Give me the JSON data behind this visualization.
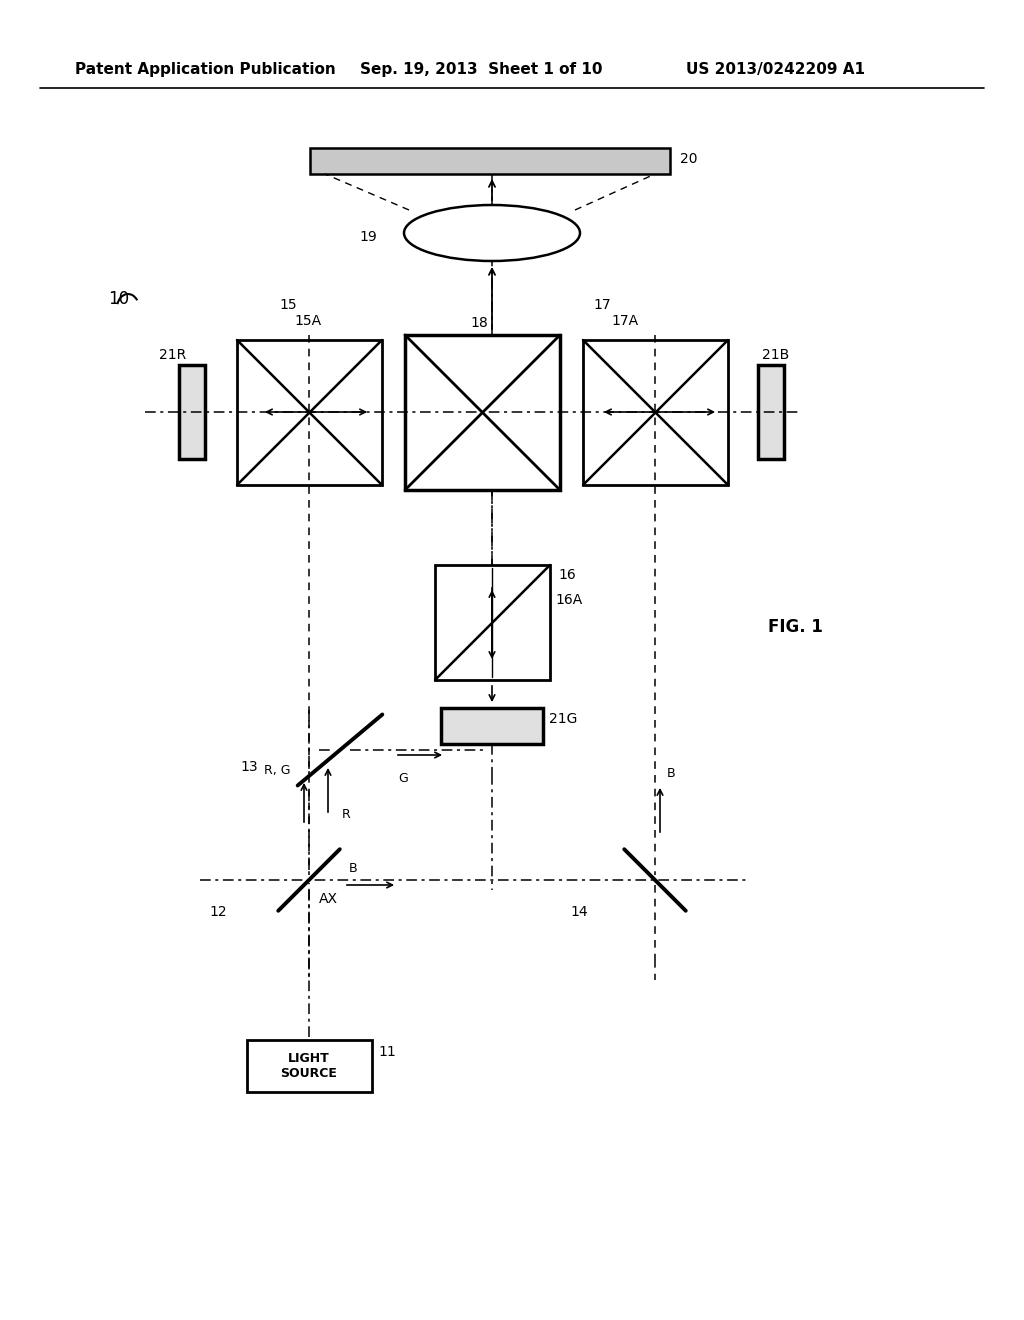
{
  "bg": "#ffffff",
  "header1": "Patent Application Publication",
  "header2": "Sep. 19, 2013  Sheet 1 of 10",
  "header3": "US 2013/0242209 A1",
  "fig_label": "FIG. 1",
  "ls_text": "LIGHT\nSOURCE"
}
